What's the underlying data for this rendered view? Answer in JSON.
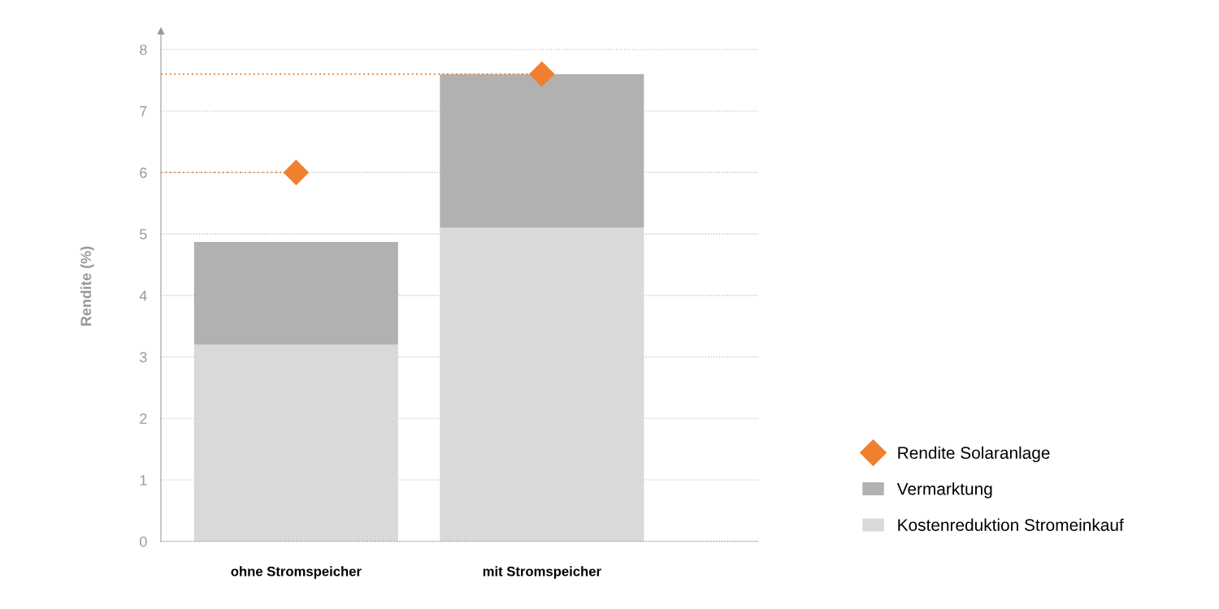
{
  "chart_data": {
    "type": "bar",
    "stacked": true,
    "ylabel": "Rendite (%)",
    "categories": [
      "ohne Stromspeicher",
      "mit Stromspeicher"
    ],
    "series": [
      {
        "name": "Kostenreduktion Stromeinkauf",
        "color": "#d9d9d9",
        "values": [
          3.2,
          5.1
        ]
      },
      {
        "name": "Vermarktung",
        "color": "#b1b1b1",
        "values": [
          1.67,
          2.5
        ]
      },
      {
        "name": "Rendite Solaranlage",
        "type": "scatter",
        "color": "#f07f2f",
        "values": [
          6.0,
          7.6
        ]
      }
    ],
    "ref_lines": [
      {
        "axis": "y",
        "value": 6.0,
        "color": "#f07f2f",
        "line_style": "dotted"
      },
      {
        "axis": "y",
        "value": 7.6,
        "color": "#f07f2f",
        "line_style": "dotted"
      }
    ],
    "ylim": [
      0,
      8.3
    ],
    "yticks": [
      0,
      1,
      2,
      3,
      4,
      5,
      6,
      7,
      8
    ],
    "grid": "y",
    "legend": "right",
    "marker": "diamond"
  }
}
